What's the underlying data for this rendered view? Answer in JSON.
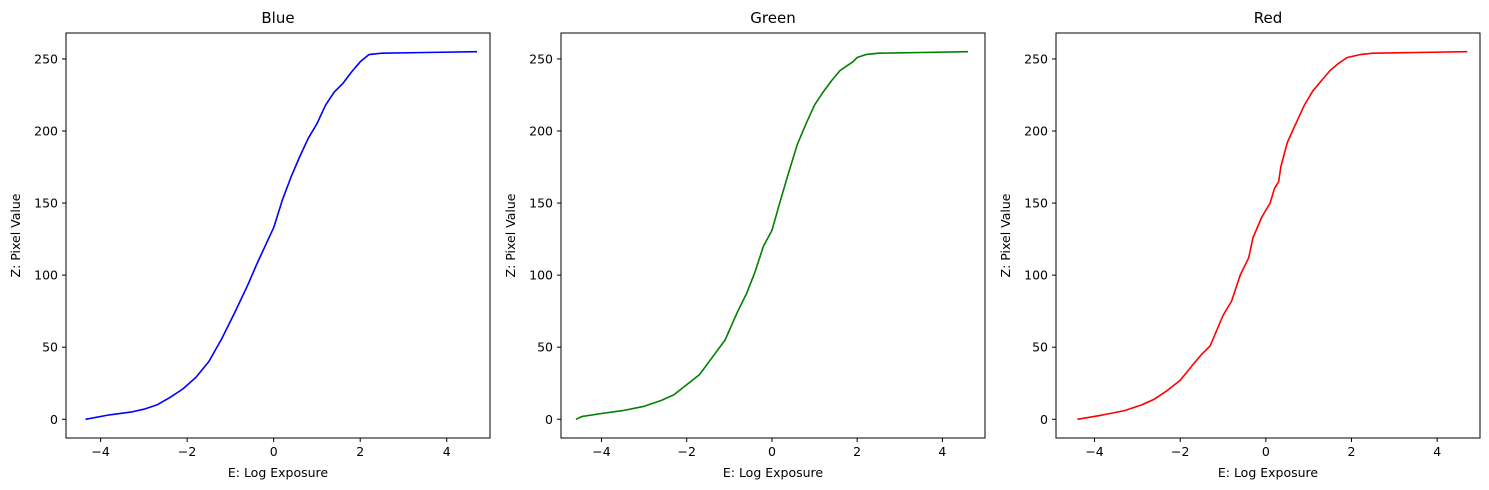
{
  "chart_data": [
    {
      "type": "line",
      "title": "Blue",
      "xlabel": "E: Log Exposure",
      "ylabel": "Z: Pixel Value",
      "color": "#0000ff",
      "xlim": [
        -4.8,
        5.0
      ],
      "ylim": [
        -13,
        268
      ],
      "xticks": [
        -4,
        -2,
        0,
        2,
        4
      ],
      "yticks": [
        0,
        50,
        100,
        150,
        200,
        250
      ],
      "xtick_labels": [
        "−4",
        "−2",
        "0",
        "2",
        "4"
      ],
      "ytick_labels": [
        "0",
        "50",
        "100",
        "150",
        "200",
        "250"
      ],
      "grid": false,
      "series": [
        {
          "x": [
            -4.35,
            -3.8,
            -3.3,
            -3.0,
            -2.7,
            -2.4,
            -2.1,
            -1.8,
            -1.5,
            -1.2,
            -0.9,
            -0.6,
            -0.4,
            -0.2,
            0.0,
            0.2,
            0.4,
            0.6,
            0.8,
            1.0,
            1.2,
            1.4,
            1.6,
            1.8,
            2.0,
            2.2,
            2.5,
            3.5,
            4.7
          ],
          "y": [
            0,
            3,
            5,
            7,
            10,
            15,
            21,
            29,
            40,
            56,
            74,
            93,
            107,
            120,
            133,
            152,
            168,
            182,
            195,
            205,
            218,
            227,
            233,
            241,
            248,
            253,
            254,
            254.5,
            255
          ]
        }
      ]
    },
    {
      "type": "line",
      "title": "Green",
      "xlabel": "E: Log Exposure",
      "ylabel": "Z: Pixel Value",
      "color": "#008000",
      "xlim": [
        -4.95,
        5.0
      ],
      "ylim": [
        -13,
        268
      ],
      "xticks": [
        -4,
        -2,
        0,
        2,
        4
      ],
      "yticks": [
        0,
        50,
        100,
        150,
        200,
        250
      ],
      "xtick_labels": [
        "−4",
        "−2",
        "0",
        "2",
        "4"
      ],
      "ytick_labels": [
        "0",
        "50",
        "100",
        "150",
        "200",
        "250"
      ],
      "grid": false,
      "series": [
        {
          "x": [
            -4.6,
            -4.45,
            -4.0,
            -3.5,
            -3.0,
            -2.6,
            -2.3,
            -2.0,
            -1.7,
            -1.4,
            -1.1,
            -0.8,
            -0.6,
            -0.4,
            -0.2,
            0.0,
            0.2,
            0.4,
            0.6,
            0.8,
            1.0,
            1.2,
            1.4,
            1.6,
            1.8,
            1.9,
            2.0,
            2.2,
            2.5,
            3.5,
            4.6
          ],
          "y": [
            0,
            2,
            4,
            6,
            9,
            13,
            17,
            24,
            31,
            43,
            55,
            75,
            87,
            102,
            120,
            131,
            152,
            172,
            191,
            205,
            218,
            227,
            235,
            242,
            246,
            248,
            251,
            253,
            254,
            254.5,
            255
          ]
        }
      ]
    },
    {
      "type": "line",
      "title": "Red",
      "xlabel": "E: Log Exposure",
      "ylabel": "Z: Pixel Value",
      "color": "#ff0000",
      "xlim": [
        -4.9,
        5.0
      ],
      "ylim": [
        -13,
        268
      ],
      "xticks": [
        -4,
        -2,
        0,
        2,
        4
      ],
      "yticks": [
        0,
        50,
        100,
        150,
        200,
        250
      ],
      "xtick_labels": [
        "−4",
        "−2",
        "0",
        "2",
        "4"
      ],
      "ytick_labels": [
        "0",
        "50",
        "100",
        "150",
        "200",
        "250"
      ],
      "grid": false,
      "series": [
        {
          "x": [
            -4.4,
            -3.8,
            -3.3,
            -2.9,
            -2.6,
            -2.3,
            -2.0,
            -1.7,
            -1.5,
            -1.3,
            -1.0,
            -0.8,
            -0.6,
            -0.4,
            -0.3,
            -0.1,
            0.1,
            0.2,
            0.3,
            0.35,
            0.5,
            0.7,
            0.9,
            1.1,
            1.3,
            1.5,
            1.7,
            1.9,
            2.2,
            2.5,
            3.5,
            4.7
          ],
          "y": [
            0,
            3,
            6,
            10,
            14,
            20,
            27,
            38,
            45,
            51,
            72,
            82,
            100,
            112,
            126,
            140,
            150,
            160,
            165,
            175,
            192,
            205,
            218,
            228,
            235,
            242,
            247,
            251,
            253,
            254,
            254.5,
            255
          ]
        }
      ]
    }
  ]
}
